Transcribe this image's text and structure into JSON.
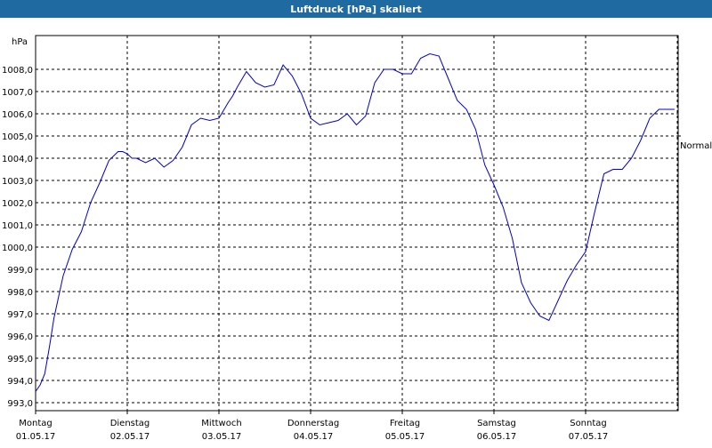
{
  "window": {
    "title": "Luftdruck [hPa] skaliert"
  },
  "chart_data": {
    "type": "line",
    "title": "Luftdruck [hPa] skaliert",
    "ylabel": "hPa",
    "ylim": [
      993.0,
      1009.0
    ],
    "yticks": [
      "993,0",
      "994,0",
      "995,0",
      "996,0",
      "997,0",
      "998,0",
      "999,0",
      "1000,0",
      "1001,0",
      "1002,0",
      "1003,0",
      "1004,0",
      "1005,0",
      "1006,0",
      "1007,0",
      "1008,0"
    ],
    "ytick_values": [
      993,
      994,
      995,
      996,
      997,
      998,
      999,
      1000,
      1001,
      1002,
      1003,
      1004,
      1005,
      1006,
      1007,
      1008
    ],
    "xlim": [
      0,
      7
    ],
    "xticks": [
      {
        "day": "Montag",
        "date": "01.05.17"
      },
      {
        "day": "Dienstag",
        "date": "02.05.17"
      },
      {
        "day": "Mittwoch",
        "date": "03.05.17"
      },
      {
        "day": "Donnerstag",
        "date": "04.05.17"
      },
      {
        "day": "Freitag",
        "date": "05.05.17"
      },
      {
        "day": "Samstag",
        "date": "06.05.17"
      },
      {
        "day": "Sonntag",
        "date": "07.05.17"
      }
    ],
    "reference": {
      "label": "Normal",
      "value": 1005.0
    },
    "grid": true,
    "series": [
      {
        "color": "#0000cc",
        "x": [
          0.0,
          0.05,
          0.1,
          0.15,
          0.2,
          0.3,
          0.4,
          0.5,
          0.6,
          0.7,
          0.8,
          0.9,
          0.95,
          1.0,
          1.05,
          1.1,
          1.2,
          1.3,
          1.4,
          1.5,
          1.6,
          1.7,
          1.8,
          1.9,
          2.0,
          2.1,
          2.15,
          2.2,
          2.3,
          2.4,
          2.5,
          2.6,
          2.7,
          2.8,
          2.9,
          3.0,
          3.1,
          3.2,
          3.3,
          3.4,
          3.5,
          3.6,
          3.7,
          3.8,
          3.9,
          4.0,
          4.1,
          4.2,
          4.3,
          4.4,
          4.5,
          4.6,
          4.7,
          4.8,
          4.9,
          5.0,
          5.1,
          5.2,
          5.3,
          5.4,
          5.5,
          5.6,
          5.7,
          5.8,
          5.9,
          6.0,
          6.1,
          6.2,
          6.3,
          6.4,
          6.5,
          6.6,
          6.7,
          6.8,
          6.9,
          6.97
        ],
        "y": [
          993.5,
          993.8,
          994.3,
          995.5,
          996.8,
          998.7,
          999.9,
          1000.7,
          1002.0,
          1002.9,
          1003.9,
          1004.3,
          1004.3,
          1004.2,
          1004.0,
          1004.0,
          1003.8,
          1004.0,
          1003.6,
          1003.9,
          1004.5,
          1005.5,
          1005.8,
          1005.7,
          1005.8,
          1006.5,
          1006.8,
          1007.2,
          1007.9,
          1007.4,
          1007.2,
          1007.3,
          1008.2,
          1007.7,
          1006.9,
          1005.8,
          1005.5,
          1005.6,
          1005.7,
          1006.0,
          1005.5,
          1005.9,
          1007.4,
          1008.0,
          1008.0,
          1007.8,
          1007.8,
          1008.5,
          1008.7,
          1008.6,
          1007.6,
          1006.6,
          1006.2,
          1005.3,
          1003.7,
          1002.8,
          1001.8,
          1000.4,
          998.4,
          997.5,
          996.9,
          996.7,
          997.6,
          998.5,
          999.2,
          999.8,
          1001.6,
          1003.3,
          1003.5,
          1003.5,
          1004.0,
          1004.8,
          1005.8,
          1006.2,
          1006.2,
          1006.2
        ]
      }
    ]
  }
}
